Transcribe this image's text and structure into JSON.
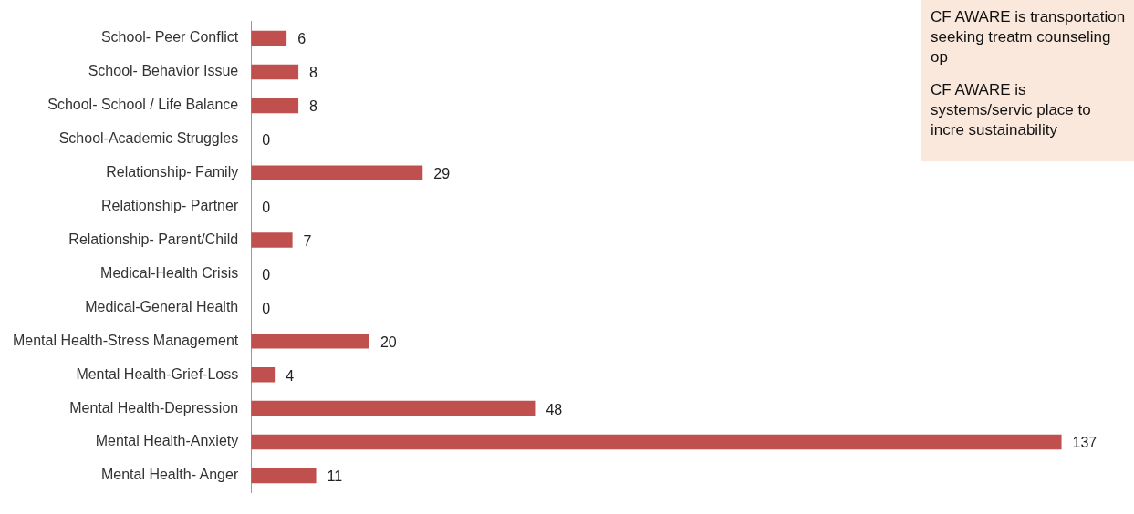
{
  "chart_data": {
    "type": "bar",
    "orientation": "horizontal",
    "categories": [
      "School- Peer Conflict",
      "School- Behavior Issue",
      "School- School / Life Balance",
      "School-Academic Struggles",
      "Relationship- Family",
      "Relationship- Partner",
      "Relationship- Parent/Child",
      "Medical-Health Crisis",
      "Medical-General Health",
      "Mental Health-Stress Management",
      "Mental Health-Grief-Loss",
      "Mental Health-Depression",
      "Mental Health-Anxiety",
      "Mental Health- Anger"
    ],
    "values": [
      6,
      8,
      8,
      0,
      29,
      0,
      7,
      0,
      0,
      20,
      4,
      48,
      137,
      11
    ],
    "color": "#c0504d",
    "data_labels": true,
    "tick_labels": "y",
    "grid": false,
    "legend": false,
    "annotations": [
      "CF AWARE is transportation seeking treatm counseling op",
      "CF AWARE is systems/servic place to incre sustainability"
    ]
  }
}
